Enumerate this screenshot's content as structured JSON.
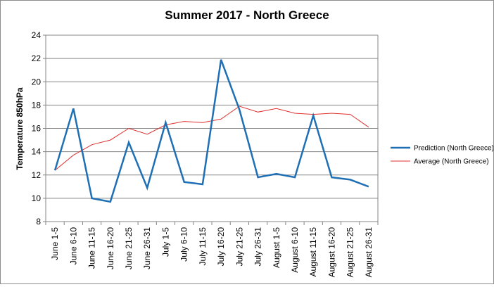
{
  "chart_data": {
    "type": "line",
    "title": "Summer 2017 - North Greece",
    "xlabel": "",
    "ylabel": "Temperature 850hPa",
    "ylim": [
      8,
      24
    ],
    "yticks": [
      "8",
      "10",
      "12",
      "14",
      "16",
      "18",
      "20",
      "22",
      "24"
    ],
    "grid": true,
    "legend_position": "right",
    "categories": [
      "June 1-5",
      "June 6-10",
      "June 11-15",
      "June 16-20",
      "June 21-25",
      "June 26-31",
      "July 1-5",
      "July 6-10",
      "July 11-15",
      "July 16-20",
      "July 21-25",
      "July 26-31",
      "August 1-5",
      "August 6-10",
      "August 11-15",
      "August 16-20",
      "August 21-25",
      "August 26-31"
    ],
    "series": [
      {
        "name": "Prediction (North Greece)",
        "color": "#1f6fb4",
        "values": [
          12.4,
          17.7,
          10.0,
          9.7,
          14.8,
          10.9,
          16.5,
          11.4,
          11.2,
          21.9,
          17.6,
          11.8,
          12.1,
          11.8,
          17.1,
          11.8,
          11.6,
          11.0
        ]
      },
      {
        "name": "Average (North Greece)",
        "color": "#e0302f",
        "values": [
          12.4,
          13.7,
          14.6,
          15.0,
          16.0,
          15.5,
          16.3,
          16.6,
          16.5,
          16.8,
          17.9,
          17.4,
          17.7,
          17.3,
          17.2,
          17.3,
          17.2,
          16.1
        ]
      }
    ]
  }
}
